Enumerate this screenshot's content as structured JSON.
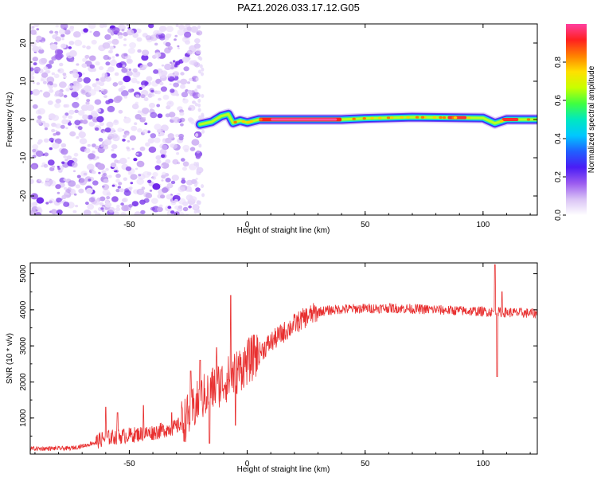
{
  "title": "PAZ1.2026.033.17.12.G05",
  "chart_data": [
    {
      "type": "heatmap",
      "xlabel": "Height of straight line (km)",
      "ylabel": "Frequency (Hz)",
      "xlim": [
        -92,
        123
      ],
      "ylim": [
        -25,
        25
      ],
      "xticks": [
        -50,
        0,
        50,
        100
      ],
      "yticks": [
        -20,
        -10,
        0,
        10,
        20
      ],
      "noise_region_x": [
        -92,
        -20
      ],
      "signal_band_center_hz": 0,
      "signal_track": [
        {
          "x": -20,
          "y": -1.3
        },
        {
          "x": -15,
          "y": -0.6
        },
        {
          "x": -11,
          "y": 0.9
        },
        {
          "x": -8,
          "y": 1.4
        },
        {
          "x": -6,
          "y": -0.9
        },
        {
          "x": -3,
          "y": -0.3
        },
        {
          "x": 0,
          "y": -0.8
        },
        {
          "x": 5,
          "y": 0
        },
        {
          "x": 40,
          "y": 0
        },
        {
          "x": 50,
          "y": 0.3
        },
        {
          "x": 70,
          "y": 0.6
        },
        {
          "x": 85,
          "y": 0.5
        },
        {
          "x": 100,
          "y": 0.4
        },
        {
          "x": 105,
          "y": -1.0
        },
        {
          "x": 110,
          "y": 0
        },
        {
          "x": 123,
          "y": 0
        }
      ],
      "colorbar": {
        "label": "Normalized spectral amplitude",
        "range": [
          0,
          1
        ],
        "ticks": [
          0.0,
          0.2,
          0.4,
          0.6,
          0.8
        ],
        "tick_labels": [
          "0.0",
          "0.2",
          "0.4",
          "0.6",
          "0.8"
        ],
        "colors": [
          "#ffffff",
          "#d9c2f5",
          "#9b5bf0",
          "#4a1cf5",
          "#2060ff",
          "#00c8ff",
          "#00e8c0",
          "#40ff40",
          "#c8ff00",
          "#ffe000",
          "#ff8000",
          "#ff2020",
          "#ff40a0"
        ]
      }
    },
    {
      "type": "line",
      "xlabel": "Height of straight line (km)",
      "ylabel": "SNR (10 * v/v)",
      "xlim": [
        -92,
        123
      ],
      "ylim": [
        0,
        5300
      ],
      "xticks": [
        -50,
        0,
        50,
        100
      ],
      "yticks": [
        1000,
        2000,
        3000,
        4000,
        5000
      ],
      "color": "#e83030",
      "envelope": [
        {
          "x": -92,
          "y": 150
        },
        {
          "x": -75,
          "y": 160
        },
        {
          "x": -68,
          "y": 250
        },
        {
          "x": -60,
          "y": 450
        },
        {
          "x": -50,
          "y": 520
        },
        {
          "x": -40,
          "y": 600
        },
        {
          "x": -30,
          "y": 750
        },
        {
          "x": -25,
          "y": 1050
        },
        {
          "x": -20,
          "y": 1500
        },
        {
          "x": -15,
          "y": 1800
        },
        {
          "x": -10,
          "y": 2000
        },
        {
          "x": -5,
          "y": 2250
        },
        {
          "x": 0,
          "y": 2550
        },
        {
          "x": 5,
          "y": 2800
        },
        {
          "x": 10,
          "y": 3100
        },
        {
          "x": 15,
          "y": 3350
        },
        {
          "x": 20,
          "y": 3600
        },
        {
          "x": 25,
          "y": 3800
        },
        {
          "x": 30,
          "y": 3950
        },
        {
          "x": 40,
          "y": 4020
        },
        {
          "x": 60,
          "y": 4050
        },
        {
          "x": 80,
          "y": 4000
        },
        {
          "x": 100,
          "y": 3950
        },
        {
          "x": 123,
          "y": 3900
        }
      ],
      "spikes": [
        {
          "x": -60,
          "y": 1300
        },
        {
          "x": -55,
          "y": 1150
        },
        {
          "x": -44,
          "y": 1350
        },
        {
          "x": -32,
          "y": 1150
        },
        {
          "x": -24,
          "y": 2300
        },
        {
          "x": -20,
          "y": 2600
        },
        {
          "x": -16,
          "y": 300
        },
        {
          "x": -13,
          "y": 2950
        },
        {
          "x": -7,
          "y": 4400
        },
        {
          "x": -5,
          "y": 800
        },
        {
          "x": 3,
          "y": 3300
        },
        {
          "x": 105,
          "y": 5250
        },
        {
          "x": 106,
          "y": 2150
        },
        {
          "x": 108,
          "y": 4500
        }
      ]
    }
  ]
}
